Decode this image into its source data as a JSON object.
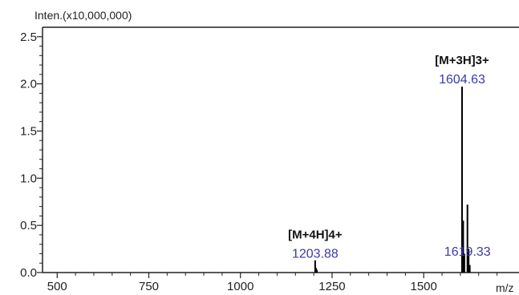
{
  "chart_data": {
    "type": "line",
    "ylabel": "Inten.(x10,000,000)",
    "xlabel": "m/z",
    "xlim": [
      460,
      1760
    ],
    "ylim": [
      0,
      2.6
    ],
    "x_ticks": [
      "500",
      "750",
      "1000",
      "1250",
      "1500"
    ],
    "y_ticks": [
      "0.0",
      "0.5",
      "1.0",
      "1.5",
      "2.0",
      "2.5"
    ],
    "peaks": [
      {
        "mz": 1203.88,
        "intensity": 0.13,
        "mz_label": "1203.88",
        "ion_label": "[M+4H]4+"
      },
      {
        "mz": 1604.63,
        "intensity": 1.97,
        "mz_label": "1604.63",
        "ion_label": "[M+3H]3+"
      },
      {
        "mz": 1619.33,
        "intensity": 0.72,
        "mz_label": "1619.33",
        "ion_label": ""
      }
    ],
    "minor_peaks": [
      {
        "mz": 1206.0,
        "intensity": 0.05
      },
      {
        "mz": 1208.5,
        "intensity": 0.03
      },
      {
        "mz": 1607.8,
        "intensity": 0.55
      },
      {
        "mz": 1610.9,
        "intensity": 0.2
      },
      {
        "mz": 1622.5,
        "intensity": 0.25
      },
      {
        "mz": 1625.7,
        "intensity": 0.08
      }
    ],
    "grid": false,
    "colors": {
      "axis": "#222222",
      "peak": "#000000",
      "mz_label": "#3a3aaa",
      "ion_label": "#111111"
    }
  }
}
